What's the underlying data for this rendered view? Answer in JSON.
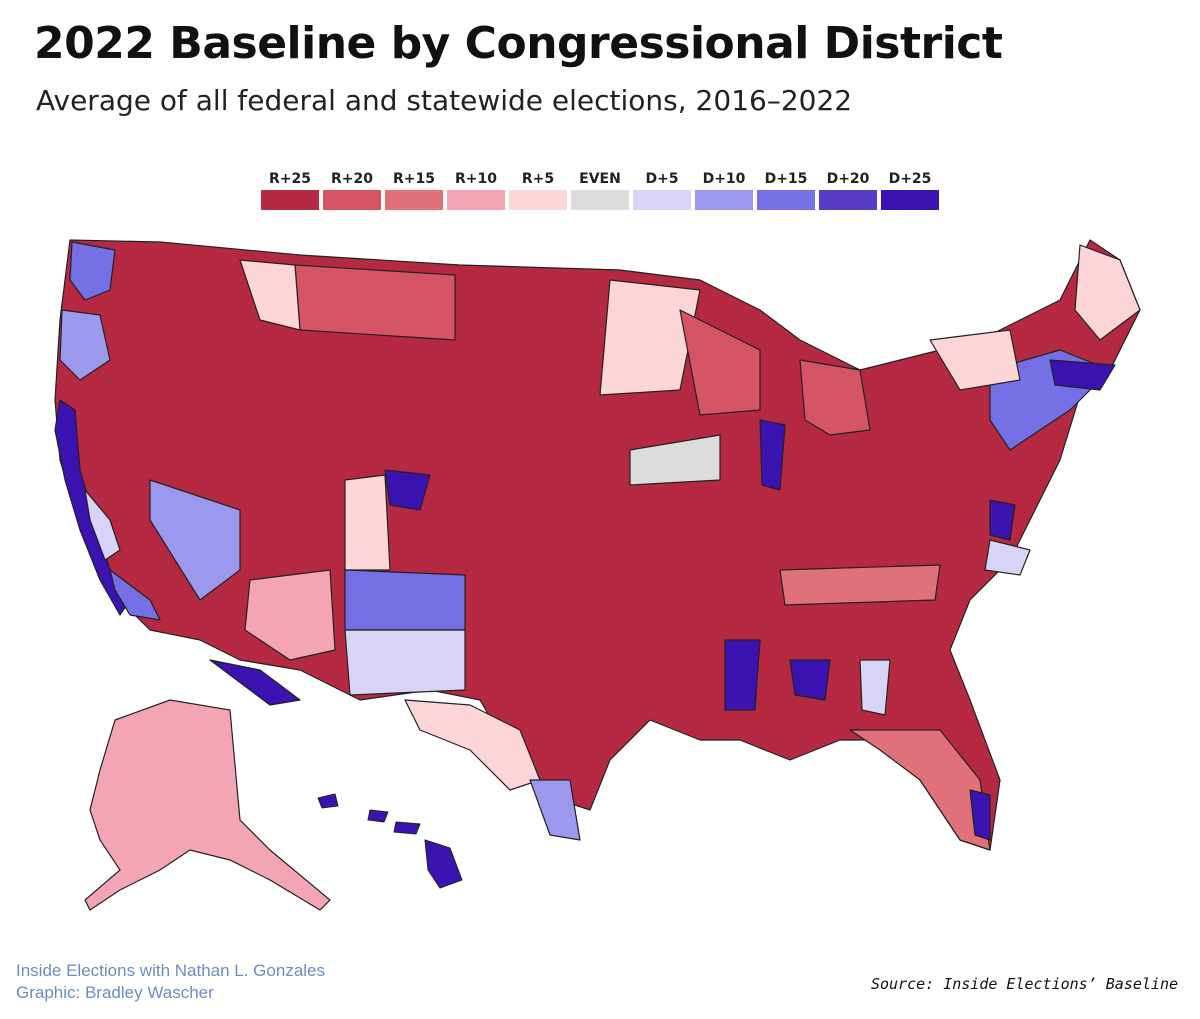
{
  "title": "2022 Baseline by Congressional District",
  "subtitle": "Average of all federal and statewide elections, 2016–2022",
  "legend": [
    {
      "label": "R+25",
      "color": "#b52a42"
    },
    {
      "label": "R+20",
      "color": "#d55565"
    },
    {
      "label": "R+15",
      "color": "#e07179"
    },
    {
      "label": "R+10",
      "color": "#f4a5b5"
    },
    {
      "label": "R+5",
      "color": "#fbd5d8"
    },
    {
      "label": "EVEN",
      "color": "#dcdcdc"
    },
    {
      "label": "D+5",
      "color": "#d8d4f8"
    },
    {
      "label": "D+10",
      "color": "#9b98ee"
    },
    {
      "label": "D+15",
      "color": "#7570e6"
    },
    {
      "label": "D+20",
      "color": "#5a3cc4"
    },
    {
      "label": "D+25",
      "color": "#3c12b0"
    }
  ],
  "credit": {
    "line1": "Inside Elections with Nathan L. Gonzales",
    "line2": "Graphic: Bradley Wascher"
  },
  "source": "Source: Inside Elections’ Baseline"
}
